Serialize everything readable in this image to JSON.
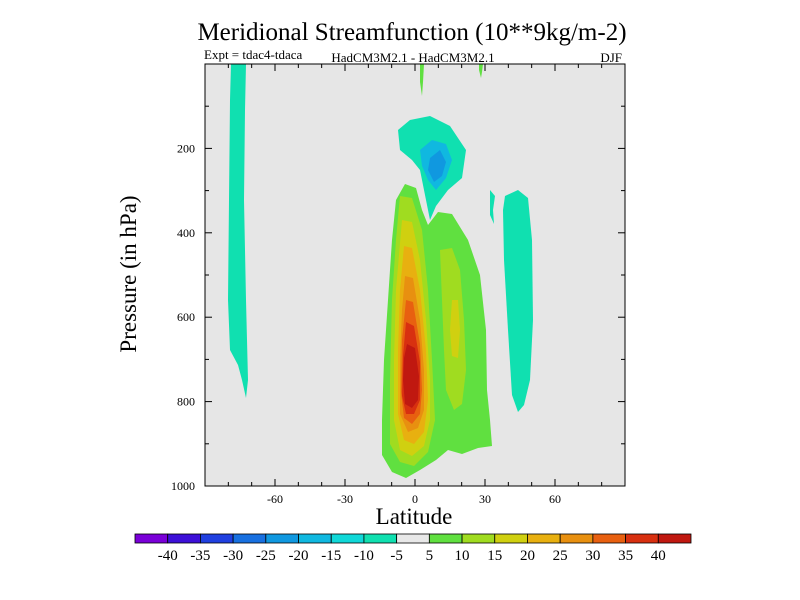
{
  "chart_data": {
    "type": "contour",
    "title": "Meridional Streamfunction (10**9kg/m-2)",
    "subtitle_left": "Expt = tdac4-tdaca",
    "subtitle_center": "HadCM3M2.1 - HadCM3M2.1",
    "subtitle_right": "DJF",
    "xlabel": "Latitude",
    "ylabel": "Pressure (in hPa)",
    "xlim": [
      -90,
      90
    ],
    "ylim": [
      1000,
      0
    ],
    "x_ticks": [
      -60,
      -30,
      0,
      30,
      60
    ],
    "y_ticks": [
      200,
      400,
      600,
      800,
      1000
    ],
    "colorbar": {
      "levels": [
        -40,
        -35,
        -30,
        -25,
        -20,
        -15,
        -10,
        -5,
        5,
        10,
        15,
        20,
        25,
        30,
        35,
        40
      ],
      "colors": [
        "#7a00d8",
        "#3d10d8",
        "#2040e0",
        "#1870e0",
        "#1098e0",
        "#10b8e0",
        "#10d8d8",
        "#10e0b0",
        "#e8e8e8",
        "#60e040",
        "#a0dc20",
        "#d0d010",
        "#e8b010",
        "#e89010",
        "#e86010",
        "#d83010",
        "#c01810"
      ]
    },
    "cells": [
      {
        "lat": -76,
        "p": 10,
        "v": -7
      },
      {
        "lat": -76,
        "p": 120,
        "v": -7
      },
      {
        "lat": -75,
        "p": 300,
        "v": -7
      },
      {
        "lat": -75,
        "p": 500,
        "v": -7
      },
      {
        "lat": -74,
        "p": 700,
        "v": -7
      },
      {
        "lat": -2,
        "p": 160,
        "v": -9
      },
      {
        "lat": 8,
        "p": 140,
        "v": -9
      },
      {
        "lat": 10,
        "p": 220,
        "v": -14
      },
      {
        "lat": 10,
        "p": 260,
        "v": -19
      },
      {
        "lat": 13,
        "p": 200,
        "v": -19
      },
      {
        "lat": 8,
        "p": 290,
        "v": -9
      },
      {
        "lat": 33,
        "p": 320,
        "v": -7
      },
      {
        "lat": 44,
        "p": 360,
        "v": -7
      },
      {
        "lat": 44,
        "p": 500,
        "v": -7
      },
      {
        "lat": 44,
        "p": 650,
        "v": -7
      },
      {
        "lat": 45,
        "p": 760,
        "v": -7
      },
      {
        "lat": 3,
        "p": 60,
        "v": 7
      },
      {
        "lat": 29,
        "p": 50,
        "v": 7
      },
      {
        "lat": -1,
        "p": 360,
        "v": 7
      },
      {
        "lat": -1,
        "p": 880,
        "v": 7
      },
      {
        "lat": -3,
        "p": 930,
        "v": 7
      },
      {
        "lat": 12,
        "p": 420,
        "v": 7
      },
      {
        "lat": 20,
        "p": 600,
        "v": 7
      },
      {
        "lat": 27,
        "p": 780,
        "v": 7
      },
      {
        "lat": 25,
        "p": 900,
        "v": 7
      },
      {
        "lat": 16,
        "p": 890,
        "v": 7
      },
      {
        "lat": -1,
        "p": 420,
        "v": 12
      },
      {
        "lat": -1,
        "p": 900,
        "v": 12
      },
      {
        "lat": 17,
        "p": 520,
        "v": 12
      },
      {
        "lat": 18,
        "p": 700,
        "v": 12
      },
      {
        "lat": 0,
        "p": 460,
        "v": 17
      },
      {
        "lat": 0,
        "p": 880,
        "v": 17
      },
      {
        "lat": 17,
        "p": 580,
        "v": 17
      },
      {
        "lat": 0,
        "p": 540,
        "v": 22
      },
      {
        "lat": 0,
        "p": 850,
        "v": 22
      },
      {
        "lat": 0,
        "p": 600,
        "v": 27
      },
      {
        "lat": 0,
        "p": 830,
        "v": 27
      },
      {
        "lat": -1,
        "p": 650,
        "v": 32
      },
      {
        "lat": 0,
        "p": 810,
        "v": 32
      },
      {
        "lat": -1,
        "p": 700,
        "v": 37
      },
      {
        "lat": -1,
        "p": 780,
        "v": 37
      },
      {
        "lat": -1,
        "p": 740,
        "v": 42
      }
    ]
  }
}
